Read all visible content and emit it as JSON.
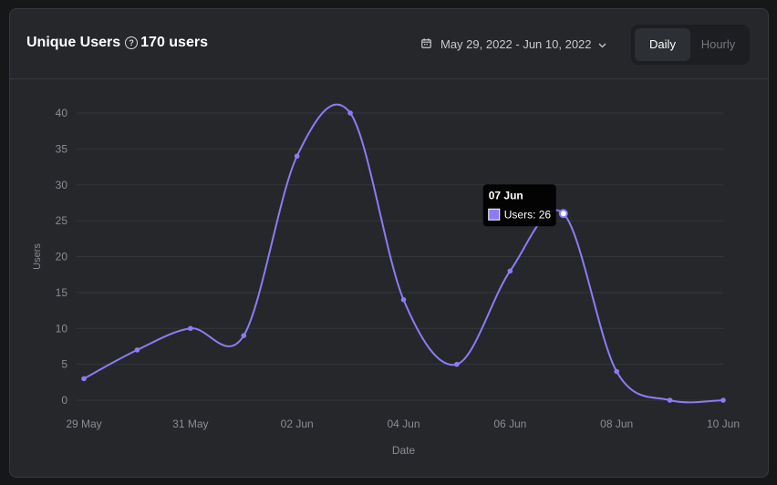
{
  "header": {
    "title": "Unique Users",
    "title_icon": "help-circle-icon",
    "count_label": "170 users",
    "date_range": "May 29, 2022 - Jun 10, 2022",
    "toggle": [
      {
        "label": "Daily",
        "active": true
      },
      {
        "label": "Hourly",
        "active": false
      }
    ]
  },
  "colors": {
    "line": "#8b7cf6",
    "grid": "#33363b",
    "axis_text": "#8a8d93"
  },
  "chart_data": {
    "type": "line",
    "xlabel": "Date",
    "ylabel": "Users",
    "ylim": [
      0,
      40
    ],
    "yticks": [
      "0",
      "5",
      "10",
      "15",
      "20",
      "25",
      "30",
      "35",
      "40"
    ],
    "x": [
      "29 May",
      "30 May",
      "31 May",
      "01 Jun",
      "02 Jun",
      "03 Jun",
      "04 Jun",
      "05 Jun",
      "06 Jun",
      "07 Jun",
      "08 Jun",
      "09 Jun",
      "10 Jun"
    ],
    "xtick_labels": [
      "29 May",
      "31 May",
      "02 Jun",
      "04 Jun",
      "06 Jun",
      "08 Jun",
      "10 Jun"
    ],
    "series": [
      {
        "name": "Users",
        "values": [
          3,
          7,
          10,
          9,
          34,
          40,
          14,
          5,
          18,
          26,
          4,
          0,
          0
        ]
      }
    ],
    "grid": true,
    "legend": "none",
    "tooltip": {
      "title": "07 Jun",
      "label": "Users: 26",
      "index": 9
    }
  }
}
